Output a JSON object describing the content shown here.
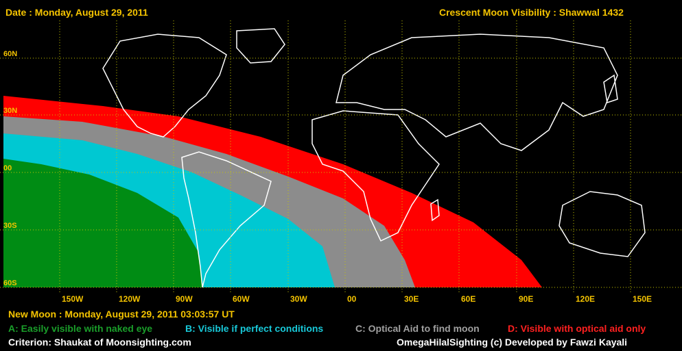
{
  "header": {
    "date": "Date : Monday, August 29, 2011",
    "title": "Crescent Moon Visibility : Shawwal  1432"
  },
  "map": {
    "lat_labels": [
      "60N",
      "30N",
      "00",
      "30S",
      "60S"
    ],
    "lon_labels": [
      "150W",
      "120W",
      "90W",
      "60W",
      "30W",
      "00",
      "30E",
      "60E",
      "90E",
      "120E",
      "150E"
    ],
    "zones": [
      {
        "id": "D",
        "color": "#ff0000"
      },
      {
        "id": "C",
        "color": "#8c8c8c"
      },
      {
        "id": "B",
        "color": "#00c8d2"
      },
      {
        "id": "A",
        "color": "#008c14"
      }
    ],
    "grid_color": "#c8c800",
    "coast_color": "#ffffff"
  },
  "footer": {
    "new_moon": "New Moon : Monday, August 29, 2011  03:03:57  UT",
    "legend": [
      {
        "label": "A: Easily visible with naked eye",
        "color": "#1a9e2a"
      },
      {
        "label": "B: Visible if perfect conditions",
        "color": "#18c8d8"
      },
      {
        "label": "C: Optical Aid to find moon",
        "color": "#a0a0a0"
      },
      {
        "label": "D: Visible with optical aid only",
        "color": "#ff2020"
      }
    ],
    "criterion": "Criterion: Shaukat of Moonsighting.com",
    "credit": "OmegaHilalSighting  (c)  Developed by Fawzi Kayali"
  }
}
